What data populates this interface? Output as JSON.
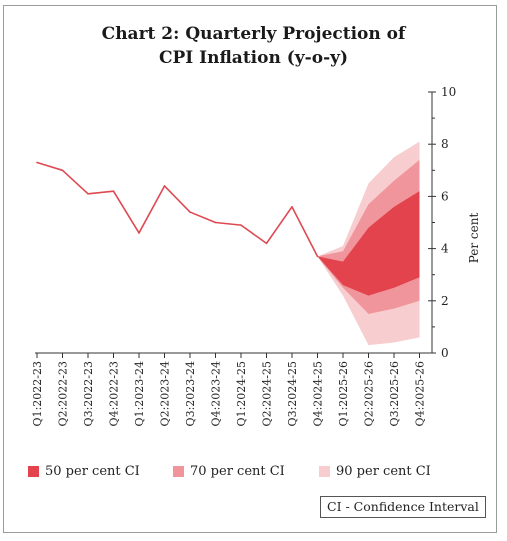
{
  "chart_data": {
    "type": "line",
    "title_line1": "Chart 2: Quarterly Projection of",
    "title_line2": "CPI Inflation (y-o-y)",
    "ylabel": "Per cent",
    "ylim": [
      0,
      10
    ],
    "yticks": [
      0,
      2,
      4,
      6,
      8,
      10
    ],
    "y_axis_side": "right",
    "grid": false,
    "categories": [
      "Q1:2022-23",
      "Q2:2022-23",
      "Q3:2022-23",
      "Q4:2022-23",
      "Q1:2023-24",
      "Q2:2023-24",
      "Q3:2023-24",
      "Q4:2023-24",
      "Q1:2024-25",
      "Q2:2024-25",
      "Q3:2024-25",
      "Q4:2024-25",
      "Q1:2025-26",
      "Q2:2025-26",
      "Q3:2025-26",
      "Q4:2025-26"
    ],
    "series": [
      {
        "values": [
          7.3,
          7.0,
          6.1,
          6.2,
          4.6,
          6.4,
          5.4,
          5.0,
          4.9,
          4.2,
          5.6,
          3.7,
          null,
          null,
          null,
          null
        ],
        "color": "#de4a52"
      }
    ],
    "fan_chart": {
      "start_index": 11,
      "start_value": 3.7,
      "bands": [
        {
          "name": "90 per cent CI",
          "color": "#f7cdcf",
          "lower": [
            3.7,
            2.2,
            0.3,
            0.4,
            0.6
          ],
          "upper": [
            3.7,
            4.1,
            6.5,
            7.5,
            8.1
          ]
        },
        {
          "name": "70 per cent CI",
          "color": "#f0959b",
          "lower": [
            3.7,
            2.5,
            1.5,
            1.7,
            2.0
          ],
          "upper": [
            3.7,
            3.9,
            5.7,
            6.6,
            7.4
          ]
        },
        {
          "name": "50 per cent CI",
          "color": "#e2434c",
          "lower": [
            3.7,
            2.6,
            2.2,
            2.5,
            2.9
          ],
          "upper": [
            3.7,
            3.5,
            4.8,
            5.6,
            6.2
          ]
        }
      ]
    },
    "legend": {
      "placement": "bottom",
      "items": [
        {
          "label": "50 per cent CI",
          "color": "#e2434c"
        },
        {
          "label": "70 per cent CI",
          "color": "#f0959b"
        },
        {
          "label": "90 per cent CI",
          "color": "#f7cdcf"
        }
      ]
    },
    "annotation": "CI - Confidence Interval"
  }
}
